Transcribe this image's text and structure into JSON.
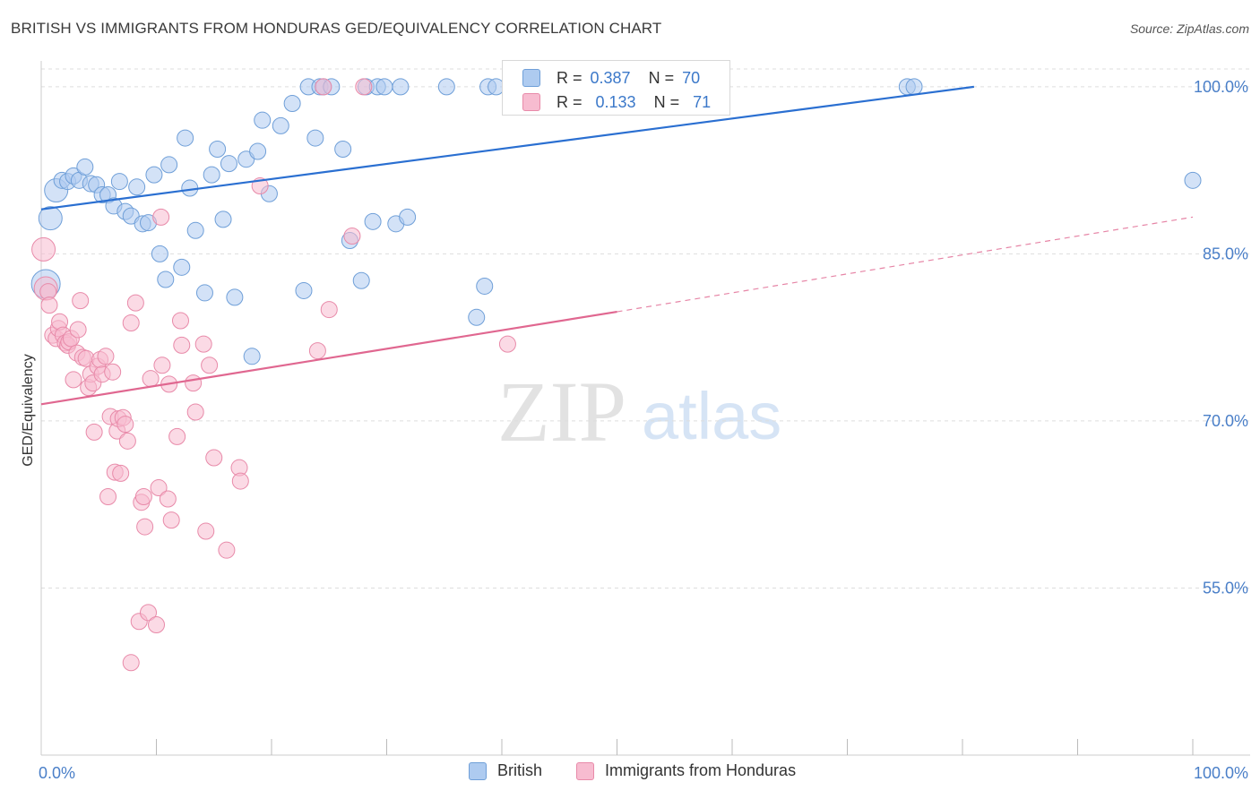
{
  "title": "BRITISH VS IMMIGRANTS FROM HONDURAS GED/EQUIVALENCY CORRELATION CHART",
  "source": "Source: ZipAtlas.com",
  "watermark": {
    "zip": "ZIP",
    "atlas": "atlas"
  },
  "legend_stats": {
    "british": {
      "r_label": "R = ",
      "r_value": "0.387",
      "n_label": "N = ",
      "n_value": "70"
    },
    "honduras": {
      "r_label": "R = ",
      "r_value": "0.133",
      "n_label": "N = ",
      "n_value": "71"
    }
  },
  "colors": {
    "british_fill": "#aecbf0",
    "british_stroke": "#6f9fd8",
    "british_line": "#2a6fd1",
    "honduras_fill": "#f7bcd0",
    "honduras_stroke": "#e88aa9",
    "honduras_line": "#e06790",
    "axis_label": "#4a7fc8",
    "grid": "#dddddd"
  },
  "chart_data": {
    "type": "scatter",
    "title": "BRITISH VS IMMIGRANTS FROM HONDURAS GED/EQUIVALENCY CORRELATION CHART",
    "xlabel": "",
    "ylabel": "GED/Equivalency",
    "xlim": [
      0,
      100
    ],
    "ylim": [
      40,
      102
    ],
    "x_tick_labels": [
      "0.0%",
      "100.0%"
    ],
    "y_ticks": [
      55,
      70,
      85,
      100
    ],
    "y_tick_labels": [
      "55.0%",
      "70.0%",
      "85.0%",
      "100.0%"
    ],
    "legend": [
      "British",
      "Immigrants from Honduras"
    ],
    "series": [
      {
        "name": "British",
        "r": 0.387,
        "n": 70,
        "trend": {
          "x0": 0,
          "y0": 89.0,
          "x1": 81.0,
          "y1": 100.0
        },
        "points": [
          {
            "x": 0.4,
            "y": 82.3,
            "s": 3
          },
          {
            "x": 0.8,
            "y": 88.2,
            "s": 2
          },
          {
            "x": 1.3,
            "y": 90.7,
            "s": 2
          },
          {
            "x": 1.8,
            "y": 91.6,
            "s": 1
          },
          {
            "x": 2.3,
            "y": 91.5,
            "s": 1
          },
          {
            "x": 2.8,
            "y": 92.0,
            "s": 1
          },
          {
            "x": 3.3,
            "y": 91.6,
            "s": 1
          },
          {
            "x": 3.8,
            "y": 92.8,
            "s": 1
          },
          {
            "x": 4.3,
            "y": 91.3,
            "s": 1
          },
          {
            "x": 4.8,
            "y": 91.2,
            "s": 1
          },
          {
            "x": 5.3,
            "y": 90.3,
            "s": 1
          },
          {
            "x": 5.8,
            "y": 90.3,
            "s": 1
          },
          {
            "x": 6.3,
            "y": 89.3,
            "s": 1
          },
          {
            "x": 6.8,
            "y": 91.5,
            "s": 1
          },
          {
            "x": 7.3,
            "y": 88.8,
            "s": 1
          },
          {
            "x": 7.8,
            "y": 88.4,
            "s": 1
          },
          {
            "x": 8.3,
            "y": 91.0,
            "s": 1
          },
          {
            "x": 8.8,
            "y": 87.7,
            "s": 1
          },
          {
            "x": 9.3,
            "y": 87.8,
            "s": 1
          },
          {
            "x": 9.8,
            "y": 92.1,
            "s": 1
          },
          {
            "x": 10.3,
            "y": 85.0,
            "s": 1
          },
          {
            "x": 10.8,
            "y": 82.7,
            "s": 1
          },
          {
            "x": 11.1,
            "y": 93.0,
            "s": 1
          },
          {
            "x": 12.2,
            "y": 83.8,
            "s": 1
          },
          {
            "x": 12.5,
            "y": 95.4,
            "s": 1
          },
          {
            "x": 12.9,
            "y": 90.9,
            "s": 1
          },
          {
            "x": 13.4,
            "y": 87.1,
            "s": 1
          },
          {
            "x": 14.2,
            "y": 81.5,
            "s": 1
          },
          {
            "x": 14.8,
            "y": 92.1,
            "s": 1
          },
          {
            "x": 15.3,
            "y": 94.4,
            "s": 1
          },
          {
            "x": 15.8,
            "y": 88.1,
            "s": 1
          },
          {
            "x": 16.3,
            "y": 93.1,
            "s": 1
          },
          {
            "x": 16.8,
            "y": 81.1,
            "s": 1
          },
          {
            "x": 17.8,
            "y": 93.5,
            "s": 1
          },
          {
            "x": 18.3,
            "y": 75.8,
            "s": 1
          },
          {
            "x": 18.8,
            "y": 94.2,
            "s": 1
          },
          {
            "x": 19.2,
            "y": 97.0,
            "s": 1
          },
          {
            "x": 19.8,
            "y": 90.4,
            "s": 1
          },
          {
            "x": 20.8,
            "y": 96.5,
            "s": 1
          },
          {
            "x": 21.8,
            "y": 98.5,
            "s": 1
          },
          {
            "x": 22.8,
            "y": 81.7,
            "s": 1
          },
          {
            "x": 23.2,
            "y": 100.0,
            "s": 1
          },
          {
            "x": 23.8,
            "y": 95.4,
            "s": 1
          },
          {
            "x": 24.2,
            "y": 100.0,
            "s": 1
          },
          {
            "x": 24.5,
            "y": 100.0,
            "s": 1
          },
          {
            "x": 25.2,
            "y": 100.0,
            "s": 1
          },
          {
            "x": 26.2,
            "y": 94.4,
            "s": 1
          },
          {
            "x": 26.8,
            "y": 86.2,
            "s": 1
          },
          {
            "x": 27.8,
            "y": 82.6,
            "s": 1
          },
          {
            "x": 28.2,
            "y": 100.0,
            "s": 1
          },
          {
            "x": 28.8,
            "y": 87.9,
            "s": 1
          },
          {
            "x": 29.2,
            "y": 100.0,
            "s": 1
          },
          {
            "x": 29.8,
            "y": 100.0,
            "s": 1
          },
          {
            "x": 30.8,
            "y": 87.7,
            "s": 1
          },
          {
            "x": 31.2,
            "y": 100.0,
            "s": 1
          },
          {
            "x": 31.8,
            "y": 88.3,
            "s": 1
          },
          {
            "x": 35.2,
            "y": 100.0,
            "s": 1
          },
          {
            "x": 37.8,
            "y": 79.3,
            "s": 1
          },
          {
            "x": 38.5,
            "y": 82.1,
            "s": 1
          },
          {
            "x": 38.8,
            "y": 100.0,
            "s": 1
          },
          {
            "x": 39.5,
            "y": 100.0,
            "s": 1
          },
          {
            "x": 42.5,
            "y": 100.0,
            "s": 1
          },
          {
            "x": 42.8,
            "y": 100.0,
            "s": 1
          },
          {
            "x": 47.8,
            "y": 100.0,
            "s": 1
          },
          {
            "x": 48.4,
            "y": 100.0,
            "s": 1
          },
          {
            "x": 52.8,
            "y": 100.0,
            "s": 1
          },
          {
            "x": 53.5,
            "y": 100.0,
            "s": 1
          },
          {
            "x": 75.2,
            "y": 100.0,
            "s": 1
          },
          {
            "x": 75.8,
            "y": 100.0,
            "s": 1
          },
          {
            "x": 100.0,
            "y": 91.6,
            "s": 1
          }
        ]
      },
      {
        "name": "Immigrants from Honduras",
        "r": 0.133,
        "n": 71,
        "trend": {
          "x0": 0,
          "y0": 71.5,
          "x1": 50.0,
          "y1": 79.8
        },
        "trend_dashed": {
          "x0": 50.0,
          "y0": 79.8,
          "x1": 100.0,
          "y1": 88.3
        },
        "points": [
          {
            "x": 0.2,
            "y": 85.4,
            "s": 2
          },
          {
            "x": 0.4,
            "y": 81.9,
            "s": 2
          },
          {
            "x": 0.6,
            "y": 81.6,
            "s": 1
          },
          {
            "x": 0.7,
            "y": 80.4,
            "s": 1
          },
          {
            "x": 1.0,
            "y": 77.7,
            "s": 1
          },
          {
            "x": 1.3,
            "y": 77.4,
            "s": 1
          },
          {
            "x": 1.5,
            "y": 78.3,
            "s": 1
          },
          {
            "x": 1.6,
            "y": 78.9,
            "s": 1
          },
          {
            "x": 1.9,
            "y": 77.7,
            "s": 1
          },
          {
            "x": 2.1,
            "y": 77.0,
            "s": 1
          },
          {
            "x": 2.3,
            "y": 76.8,
            "s": 1
          },
          {
            "x": 2.4,
            "y": 77.1,
            "s": 1
          },
          {
            "x": 2.6,
            "y": 77.4,
            "s": 1
          },
          {
            "x": 2.8,
            "y": 73.7,
            "s": 1
          },
          {
            "x": 3.1,
            "y": 76.1,
            "s": 1
          },
          {
            "x": 3.2,
            "y": 78.2,
            "s": 1
          },
          {
            "x": 3.4,
            "y": 80.8,
            "s": 1
          },
          {
            "x": 3.6,
            "y": 75.7,
            "s": 1
          },
          {
            "x": 3.9,
            "y": 75.6,
            "s": 1
          },
          {
            "x": 4.1,
            "y": 73.0,
            "s": 1
          },
          {
            "x": 4.3,
            "y": 74.2,
            "s": 1
          },
          {
            "x": 4.5,
            "y": 73.4,
            "s": 1
          },
          {
            "x": 4.6,
            "y": 69.0,
            "s": 1
          },
          {
            "x": 4.9,
            "y": 74.9,
            "s": 1
          },
          {
            "x": 5.1,
            "y": 75.5,
            "s": 1
          },
          {
            "x": 5.3,
            "y": 74.2,
            "s": 1
          },
          {
            "x": 5.6,
            "y": 75.8,
            "s": 1
          },
          {
            "x": 5.8,
            "y": 63.2,
            "s": 1
          },
          {
            "x": 6.0,
            "y": 70.4,
            "s": 1
          },
          {
            "x": 6.2,
            "y": 74.4,
            "s": 1
          },
          {
            "x": 6.4,
            "y": 65.4,
            "s": 1
          },
          {
            "x": 6.6,
            "y": 69.1,
            "s": 1
          },
          {
            "x": 6.7,
            "y": 70.2,
            "s": 1
          },
          {
            "x": 6.9,
            "y": 65.3,
            "s": 1
          },
          {
            "x": 7.1,
            "y": 70.3,
            "s": 1
          },
          {
            "x": 7.3,
            "y": 69.7,
            "s": 1
          },
          {
            "x": 7.5,
            "y": 68.2,
            "s": 1
          },
          {
            "x": 7.8,
            "y": 78.8,
            "s": 1
          },
          {
            "x": 7.8,
            "y": 48.3,
            "s": 1
          },
          {
            "x": 8.2,
            "y": 80.6,
            "s": 1
          },
          {
            "x": 8.5,
            "y": 52.0,
            "s": 1
          },
          {
            "x": 8.7,
            "y": 62.7,
            "s": 1
          },
          {
            "x": 8.9,
            "y": 63.2,
            "s": 1
          },
          {
            "x": 9.0,
            "y": 60.5,
            "s": 1
          },
          {
            "x": 9.3,
            "y": 52.8,
            "s": 1
          },
          {
            "x": 9.5,
            "y": 73.8,
            "s": 1
          },
          {
            "x": 10.0,
            "y": 51.7,
            "s": 1
          },
          {
            "x": 10.2,
            "y": 64.0,
            "s": 1
          },
          {
            "x": 10.4,
            "y": 88.3,
            "s": 1
          },
          {
            "x": 10.5,
            "y": 75.0,
            "s": 1
          },
          {
            "x": 11.0,
            "y": 63.0,
            "s": 1
          },
          {
            "x": 11.1,
            "y": 73.3,
            "s": 1
          },
          {
            "x": 11.3,
            "y": 61.1,
            "s": 1
          },
          {
            "x": 11.8,
            "y": 68.6,
            "s": 1
          },
          {
            "x": 12.1,
            "y": 79.0,
            "s": 1
          },
          {
            "x": 12.2,
            "y": 76.8,
            "s": 1
          },
          {
            "x": 13.2,
            "y": 73.4,
            "s": 1
          },
          {
            "x": 13.4,
            "y": 70.8,
            "s": 1
          },
          {
            "x": 14.1,
            "y": 76.9,
            "s": 1
          },
          {
            "x": 14.3,
            "y": 60.1,
            "s": 1
          },
          {
            "x": 14.6,
            "y": 75.0,
            "s": 1
          },
          {
            "x": 15.0,
            "y": 66.7,
            "s": 1
          },
          {
            "x": 16.1,
            "y": 58.4,
            "s": 1
          },
          {
            "x": 17.2,
            "y": 65.8,
            "s": 1
          },
          {
            "x": 17.3,
            "y": 64.6,
            "s": 1
          },
          {
            "x": 19.0,
            "y": 91.1,
            "s": 1
          },
          {
            "x": 24.0,
            "y": 76.3,
            "s": 1
          },
          {
            "x": 24.5,
            "y": 100.0,
            "s": 1
          },
          {
            "x": 25.0,
            "y": 80.0,
            "s": 1
          },
          {
            "x": 27.0,
            "y": 86.6,
            "s": 1
          },
          {
            "x": 28.0,
            "y": 100.0,
            "s": 1
          },
          {
            "x": 40.5,
            "y": 76.9,
            "s": 1
          }
        ]
      }
    ]
  }
}
